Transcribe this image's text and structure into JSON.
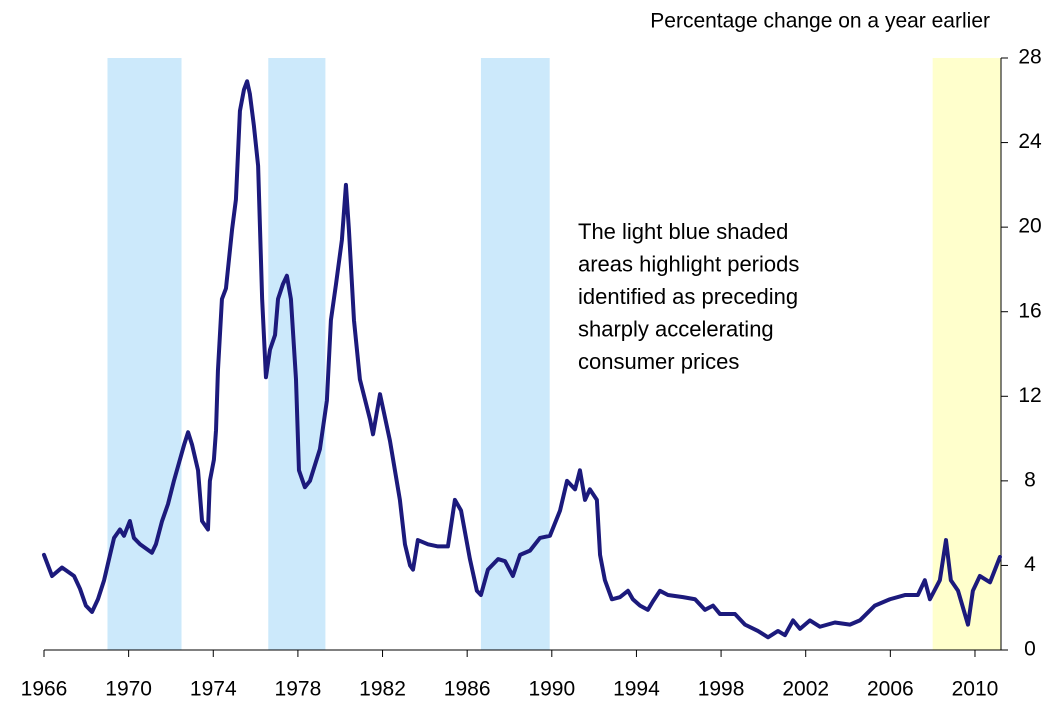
{
  "chart_data": {
    "type": "line",
    "axis_title": "Percentage change on a year earlier",
    "annotation": [
      "The light blue shaded",
      "areas highlight periods",
      "identified as preceding",
      "sharply accelerating",
      "consumer prices"
    ],
    "xlim": [
      1966,
      2011.23
    ],
    "xticks": [
      1966,
      1970,
      1974,
      1978,
      1982,
      1986,
      1990,
      1994,
      1998,
      2002,
      2006,
      2010
    ],
    "ylim": [
      0,
      28
    ],
    "yticks": [
      0,
      4,
      8,
      12,
      16,
      20,
      24,
      28
    ],
    "shaded_periods": [
      {
        "start": 1969.0,
        "end": 1972.5,
        "color": "#cce9fb"
      },
      {
        "start": 1976.6,
        "end": 1979.3,
        "color": "#cce9fb"
      },
      {
        "start": 1986.65,
        "end": 1989.9,
        "color": "#cce9fb"
      },
      {
        "start": 2008.0,
        "end": 2011.23,
        "color": "#ffffcc"
      }
    ],
    "series": [
      {
        "color": "#1c1a7c",
        "x": [
          1966.0,
          1966.38,
          1966.85,
          1967.42,
          1967.7,
          1967.98,
          1968.27,
          1968.55,
          1968.84,
          1969.12,
          1969.31,
          1969.59,
          1969.78,
          1970.06,
          1970.25,
          1970.54,
          1971.1,
          1971.29,
          1971.58,
          1971.86,
          1972.14,
          1972.62,
          1972.81,
          1973.0,
          1973.28,
          1973.47,
          1973.75,
          1973.84,
          1974.03,
          1974.13,
          1974.22,
          1974.41,
          1974.6,
          1974.89,
          1975.07,
          1975.26,
          1975.45,
          1975.6,
          1975.73,
          1975.92,
          1976.12,
          1976.31,
          1976.49,
          1976.68,
          1976.92,
          1977.06,
          1977.29,
          1977.48,
          1977.67,
          1977.91,
          1978.05,
          1978.33,
          1978.57,
          1979.04,
          1979.37,
          1979.56,
          1979.8,
          1980.08,
          1980.27,
          1980.41,
          1980.65,
          1980.93,
          1981.41,
          1981.55,
          1981.88,
          1982.35,
          1982.82,
          1983.06,
          1983.3,
          1983.44,
          1983.67,
          1984.15,
          1984.62,
          1985.09,
          1985.42,
          1985.71,
          1986.13,
          1986.46,
          1986.65,
          1986.98,
          1987.46,
          1987.79,
          1988.16,
          1988.5,
          1988.97,
          1989.44,
          1989.91,
          1990.39,
          1990.72,
          1991.1,
          1991.33,
          1991.57,
          1991.8,
          1992.13,
          1992.28,
          1992.51,
          1992.84,
          1993.22,
          1993.6,
          1993.83,
          1994.17,
          1994.54,
          1994.78,
          1995.11,
          1995.49,
          1996.2,
          1996.77,
          1997.24,
          1997.62,
          1997.95,
          1998.66,
          1999.13,
          1999.74,
          2000.22,
          2000.69,
          2001.02,
          2001.4,
          2001.73,
          2002.2,
          2002.67,
          2003.38,
          2004.09,
          2004.56,
          2005.27,
          2005.98,
          2006.69,
          2007.3,
          2007.63,
          2007.87,
          2008.34,
          2008.63,
          2008.86,
          2009.2,
          2009.67,
          2009.9,
          2010.23,
          2010.71,
          2011.18
        ],
        "values": [
          4.5,
          3.5,
          3.9,
          3.5,
          2.9,
          2.1,
          1.8,
          2.4,
          3.3,
          4.5,
          5.3,
          5.7,
          5.4,
          6.1,
          5.3,
          5.0,
          4.6,
          5.0,
          6.1,
          6.9,
          8.0,
          9.7,
          10.3,
          9.7,
          8.5,
          6.1,
          5.7,
          8.0,
          9.0,
          10.4,
          13.2,
          16.6,
          17.1,
          19.9,
          21.3,
          25.5,
          26.5,
          26.9,
          26.3,
          24.8,
          22.9,
          16.6,
          12.9,
          14.2,
          14.9,
          16.6,
          17.3,
          17.7,
          16.6,
          12.8,
          8.5,
          7.7,
          8.0,
          9.5,
          11.8,
          15.6,
          17.3,
          19.4,
          22.0,
          19.9,
          15.6,
          12.8,
          10.9,
          10.2,
          12.1,
          9.9,
          7.1,
          5.0,
          4.0,
          3.8,
          5.2,
          5.0,
          4.9,
          4.9,
          7.1,
          6.6,
          4.3,
          2.8,
          2.6,
          3.8,
          4.3,
          4.2,
          3.5,
          4.5,
          4.7,
          5.3,
          5.4,
          6.6,
          8.0,
          7.6,
          8.5,
          7.1,
          7.6,
          7.1,
          4.5,
          3.3,
          2.4,
          2.5,
          2.8,
          2.4,
          2.1,
          1.9,
          2.3,
          2.8,
          2.6,
          2.5,
          2.4,
          1.9,
          2.1,
          1.7,
          1.7,
          1.2,
          0.9,
          0.6,
          0.9,
          0.7,
          1.4,
          1.0,
          1.4,
          1.1,
          1.3,
          1.2,
          1.4,
          2.1,
          2.4,
          2.6,
          2.6,
          3.3,
          2.4,
          3.3,
          5.2,
          3.3,
          2.8,
          1.2,
          2.8,
          3.5,
          3.2,
          4.4
        ]
      }
    ]
  }
}
